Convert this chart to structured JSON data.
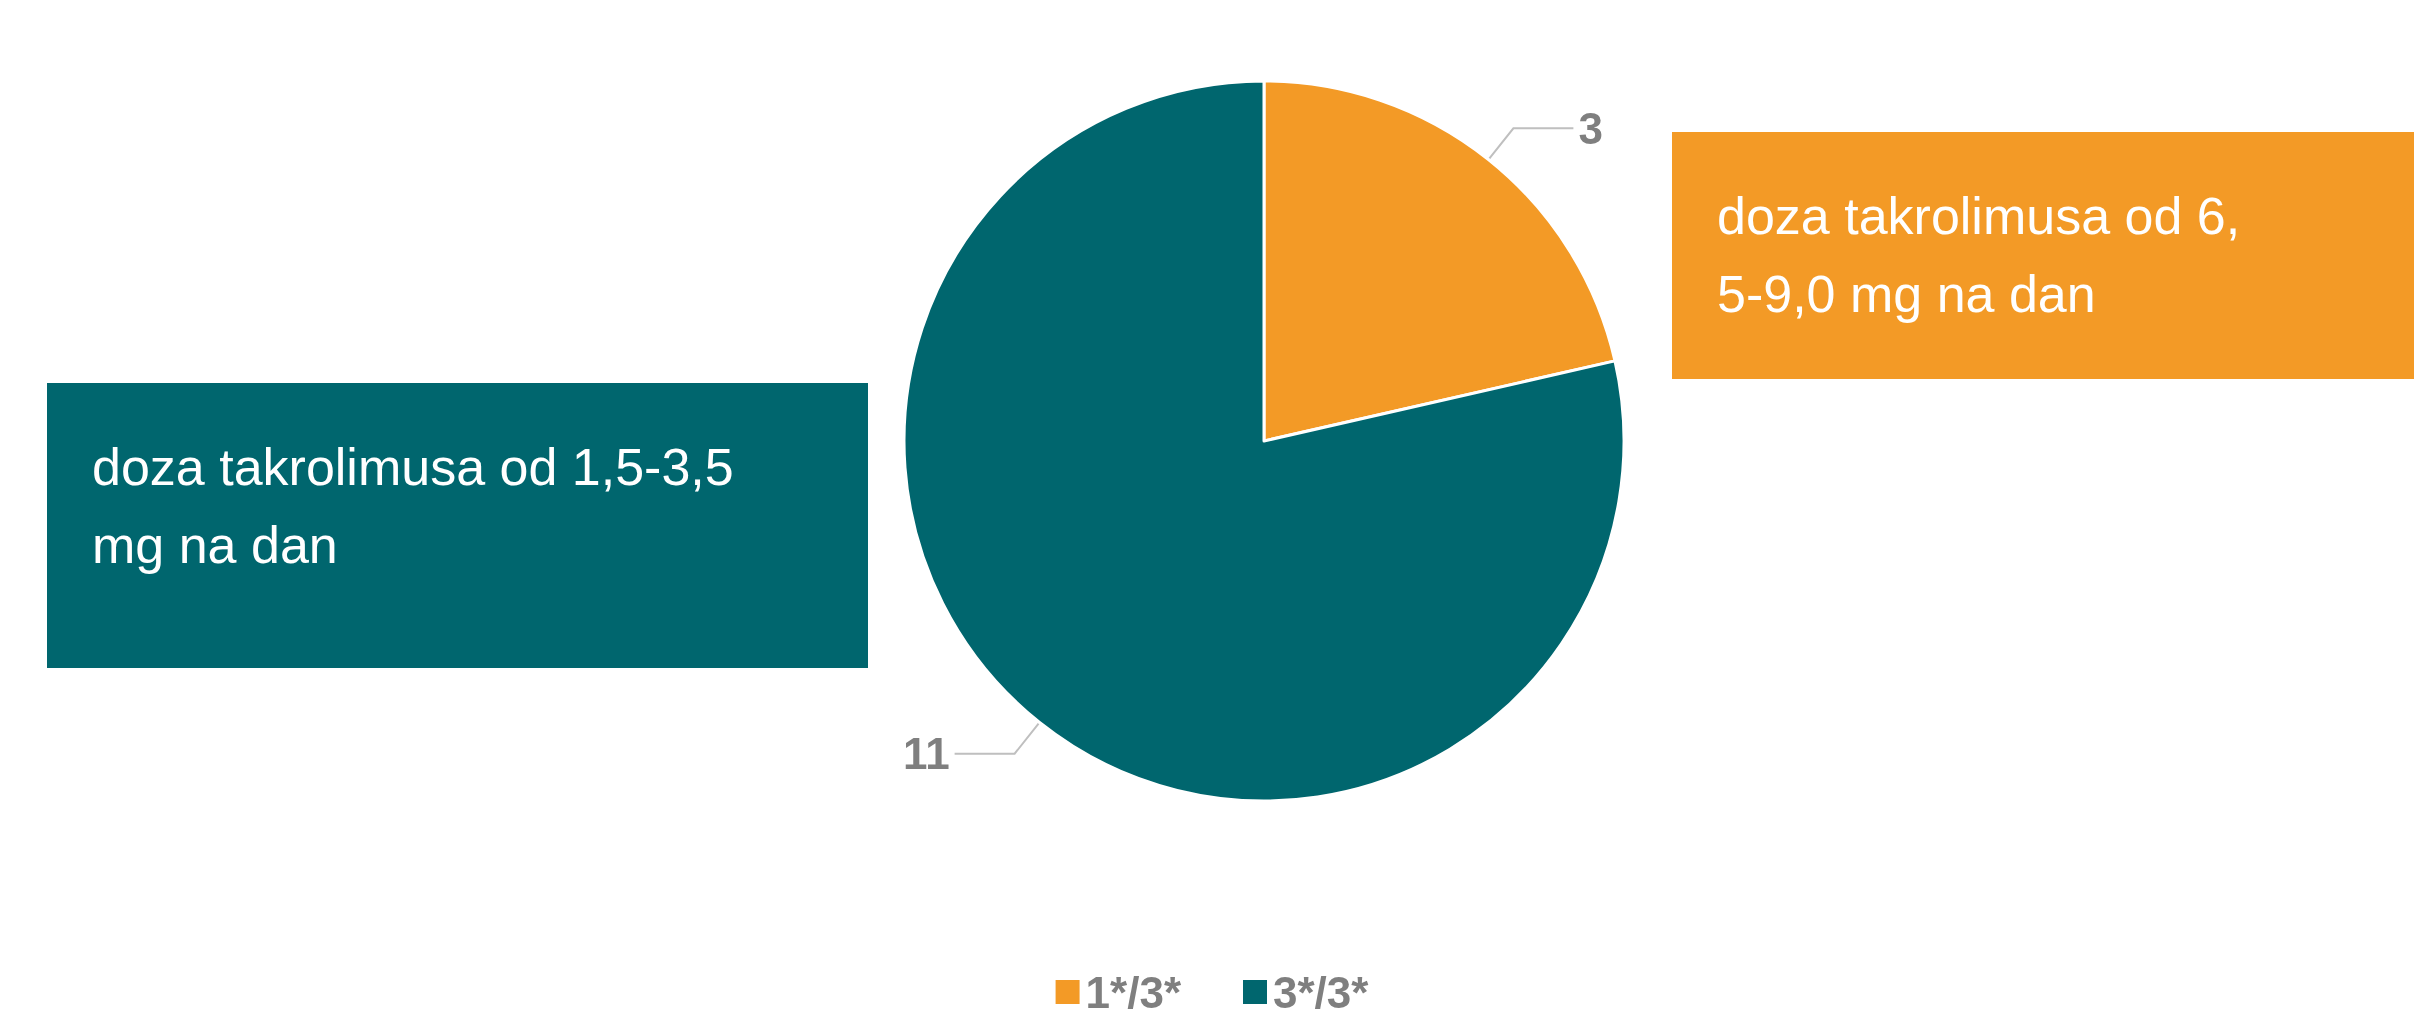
{
  "chart_data": {
    "type": "pie",
    "categories": [
      "1*/3*",
      "3*/3*"
    ],
    "values": [
      3,
      11
    ],
    "colors": [
      "#f39a26",
      "#00666e"
    ],
    "data_labels": true,
    "legend": "bottom",
    "annotations": [
      "doza takrolimusa od 6,5-9,0 mg na dan",
      "doza takrolimusa od 1,5-3,5 mg na dan"
    ]
  }
}
